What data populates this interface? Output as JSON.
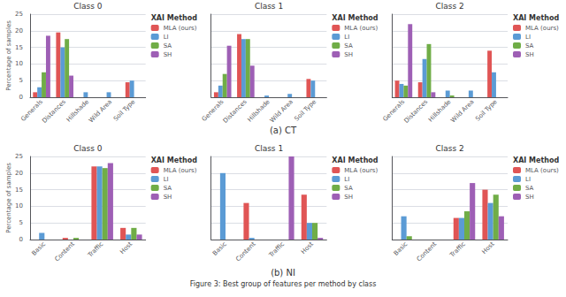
{
  "chart_data": [
    {
      "type": "bar",
      "title": "Class 0",
      "categories": [
        "Generals",
        "Distances",
        "Hillshade",
        "Wild Area",
        "Soil Type"
      ],
      "series": [
        {
          "name": "MLA (ours)",
          "color": "#e05555",
          "values": [
            1.5,
            19.5,
            0.0,
            0.0,
            4.5
          ]
        },
        {
          "name": "LI",
          "color": "#5b9bd5",
          "values": [
            3.0,
            15.0,
            1.5,
            1.5,
            5.0
          ]
        },
        {
          "name": "SA",
          "color": "#70ad47",
          "values": [
            7.5,
            17.5,
            0.0,
            0.0,
            0.0
          ]
        },
        {
          "name": "SH",
          "color": "#9e5fb5",
          "values": [
            18.5,
            6.5,
            0.0,
            0.0,
            0.0
          ]
        }
      ],
      "ylim": [
        0,
        25
      ],
      "yticks": [
        0,
        5,
        10,
        15,
        20,
        25
      ],
      "ylabel": "Percentage of samples",
      "grid": true,
      "legend": "upper right",
      "legend_title": "XAI Method"
    },
    {
      "type": "bar",
      "title": "Class 1",
      "categories": [
        "Generals",
        "Distances",
        "Hillshade",
        "Wild Area",
        "Soil Type"
      ],
      "series": [
        {
          "name": "MLA (ours)",
          "color": "#e05555",
          "values": [
            1.5,
            19.0,
            0.0,
            0.0,
            5.5
          ]
        },
        {
          "name": "LI",
          "color": "#5b9bd5",
          "values": [
            3.5,
            17.5,
            0.5,
            1.0,
            5.0
          ]
        },
        {
          "name": "SA",
          "color": "#70ad47",
          "values": [
            7.0,
            17.5,
            0.0,
            0.0,
            0.0
          ]
        },
        {
          "name": "SH",
          "color": "#9e5fb5",
          "values": [
            15.5,
            9.5,
            0.0,
            0.0,
            0.0
          ]
        }
      ],
      "ylim": [
        0,
        25
      ],
      "yticks": [
        0,
        5,
        10,
        15,
        20,
        25
      ],
      "grid": true,
      "legend": "upper right",
      "legend_title": "XAI Method",
      "tick_labels": "x",
      "annotations": [
        "(a) CT"
      ]
    },
    {
      "type": "bar",
      "title": "Class 2",
      "categories": [
        "Generals",
        "Distances",
        "Hillshade",
        "Wild Area",
        "Soil Type"
      ],
      "series": [
        {
          "name": "MLA (ours)",
          "color": "#e05555",
          "values": [
            5.0,
            4.5,
            0.0,
            0.0,
            14.0
          ]
        },
        {
          "name": "LI",
          "color": "#5b9bd5",
          "values": [
            4.0,
            11.5,
            2.0,
            2.0,
            7.5
          ]
        },
        {
          "name": "SA",
          "color": "#70ad47",
          "values": [
            3.5,
            16.0,
            0.5,
            0.0,
            0.0
          ]
        },
        {
          "name": "SH",
          "color": "#9e5fb5",
          "values": [
            22.0,
            1.5,
            0.0,
            0.0,
            0.0
          ]
        }
      ],
      "ylim": [
        0,
        25
      ],
      "yticks": [
        0,
        5,
        10,
        15,
        20,
        25
      ],
      "grid": true,
      "legend": "upper right",
      "legend_title": "XAI Method",
      "tick_labels": "x"
    },
    {
      "type": "bar",
      "title": "Class 0",
      "categories": [
        "Basic",
        "Content",
        "Traffic",
        "Host"
      ],
      "series": [
        {
          "name": "MLA (ours)",
          "color": "#e05555",
          "values": [
            0.0,
            0.5,
            22.0,
            3.5
          ]
        },
        {
          "name": "LI",
          "color": "#5b9bd5",
          "values": [
            2.0,
            0.0,
            22.0,
            1.5
          ]
        },
        {
          "name": "SA",
          "color": "#70ad47",
          "values": [
            0.0,
            0.5,
            21.5,
            3.5
          ]
        },
        {
          "name": "SH",
          "color": "#9e5fb5",
          "values": [
            0.0,
            0.0,
            23.0,
            1.5
          ]
        }
      ],
      "ylim": [
        0,
        25
      ],
      "yticks": [
        0,
        5,
        10,
        15,
        20,
        25
      ],
      "ylabel": "Percentage of samples",
      "grid": true,
      "legend": "upper right",
      "legend_title": "XAI Method"
    },
    {
      "type": "bar",
      "title": "Class 1",
      "categories": [
        "Basic",
        "Content",
        "Traffic",
        "Host"
      ],
      "series": [
        {
          "name": "MLA (ours)",
          "color": "#e05555",
          "values": [
            0.0,
            11.0,
            0.0,
            13.5
          ]
        },
        {
          "name": "LI",
          "color": "#5b9bd5",
          "values": [
            20.0,
            0.5,
            0.0,
            5.0
          ]
        },
        {
          "name": "SA",
          "color": "#70ad47",
          "values": [
            0.0,
            0.0,
            0.0,
            5.0
          ]
        },
        {
          "name": "SH",
          "color": "#9e5fb5",
          "values": [
            0.0,
            0.0,
            25.0,
            0.5
          ]
        }
      ],
      "ylim": [
        0,
        25
      ],
      "yticks": [
        0,
        5,
        10,
        15,
        20,
        25
      ],
      "grid": true,
      "legend": "upper right",
      "legend_title": "XAI Method",
      "tick_labels": "x",
      "annotations": [
        "(b) NI",
        "Figure 3: Best group of features per method by class"
      ]
    },
    {
      "type": "bar",
      "title": "Class 2",
      "categories": [
        "Basic",
        "Content",
        "Traffic",
        "Host"
      ],
      "series": [
        {
          "name": "MLA (ours)",
          "color": "#e05555",
          "values": [
            0.0,
            0.0,
            6.5,
            15.0
          ]
        },
        {
          "name": "LI",
          "color": "#5b9bd5",
          "values": [
            7.0,
            0.0,
            6.5,
            11.0
          ]
        },
        {
          "name": "SA",
          "color": "#70ad47",
          "values": [
            1.0,
            0.0,
            8.5,
            13.5
          ]
        },
        {
          "name": "SH",
          "color": "#9e5fb5",
          "values": [
            0.0,
            0.0,
            17.0,
            7.0
          ]
        }
      ],
      "ylim": [
        0,
        25
      ],
      "yticks": [
        0,
        5,
        10,
        15,
        20,
        25
      ],
      "grid": true,
      "legend": "upper right",
      "legend_title": "XAI Method",
      "tick_labels": "x"
    }
  ]
}
